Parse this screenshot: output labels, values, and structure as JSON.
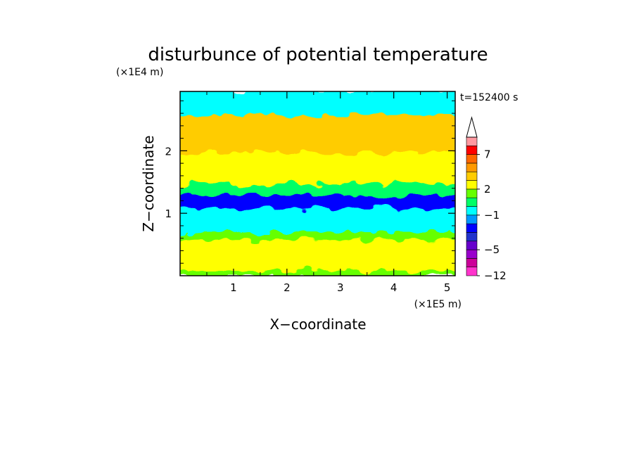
{
  "chart_data": {
    "type": "heatmap",
    "title": "disturbunce of potential temperature",
    "xlabel": "X−coordinate",
    "ylabel": "Z−coordinate",
    "x_scale_label": "(×1E5 m)",
    "y_scale_label": "(×1E4 m)",
    "time_label": "t=152400 s",
    "xlim": [
      0,
      5.15
    ],
    "ylim": [
      0,
      2.95
    ],
    "x_ticks": [
      1,
      2,
      3,
      4,
      5
    ],
    "x_tick_labels": [
      "1",
      "2",
      "3",
      "4",
      "5"
    ],
    "y_ticks": [
      1,
      2
    ],
    "y_tick_labels": [
      "1",
      "2"
    ],
    "colorbar": {
      "levels": [
        -12,
        -9,
        -7,
        -5,
        -4,
        -3,
        -2,
        -1,
        0,
        1,
        2,
        3,
        4,
        5,
        7,
        9,
        11
      ],
      "tick_values": [
        -12,
        -5,
        -1,
        2,
        7
      ],
      "tick_labels": [
        "−12",
        "−5",
        "−1",
        "2",
        "7"
      ],
      "colors": [
        "#ff33cc",
        "#cc0099",
        "#9900cc",
        "#6600cc",
        "#2233cc",
        "#0000ff",
        "#0099ff",
        "#00ffff",
        "#00ff66",
        "#66ff00",
        "#ffff00",
        "#ffcc00",
        "#ff9900",
        "#ff6600",
        "#ff0000",
        "#ff99a0"
      ],
      "extend": "max"
    },
    "regions": [
      {
        "z_range": [
          0,
          0.1
        ],
        "level": "0 to 1",
        "color": "#66ff00"
      },
      {
        "z_range": [
          0.1,
          0.6
        ],
        "level": "2 to 3",
        "color": "#ffff00"
      },
      {
        "z_range": [
          0.6,
          0.72
        ],
        "level": "1 to 2",
        "color": "#66ff00"
      },
      {
        "z_range": [
          0.72,
          1.1
        ],
        "level": "-1 to 0",
        "color": "#00ffff"
      },
      {
        "z_range": [
          1.1,
          1.3
        ],
        "level": "-3 to -2",
        "color": "#0000ff"
      },
      {
        "z_range": [
          1.3,
          1.5
        ],
        "level": "0 to 1",
        "color": "#00ff66"
      },
      {
        "z_range": [
          1.5,
          2.0
        ],
        "level": "2 to 4",
        "color": "#ffff00"
      },
      {
        "z_range": [
          2.0,
          2.6
        ],
        "level": "3 to 5",
        "color": "#ffcc00"
      },
      {
        "z_range": [
          2.6,
          2.95
        ],
        "level": "-1 to 1",
        "color": "#00ffff"
      }
    ]
  }
}
